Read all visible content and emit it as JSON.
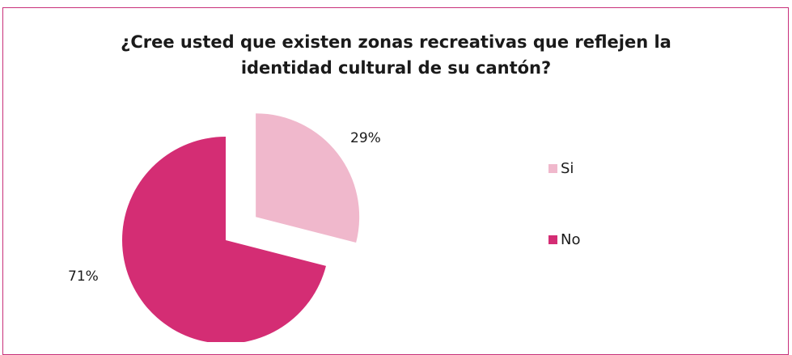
{
  "chart_data": {
    "type": "pie",
    "title": "¿Cree usted que existen zonas recreativas que reflejen la identidad cultural de su cantón?",
    "categories": [
      "Si",
      "No"
    ],
    "values": [
      29,
      71
    ],
    "data_labels": [
      "29%",
      "71%"
    ],
    "colors": [
      "#f0b8cc",
      "#d42d74"
    ],
    "exploded": "Si",
    "legend_position": "right"
  }
}
